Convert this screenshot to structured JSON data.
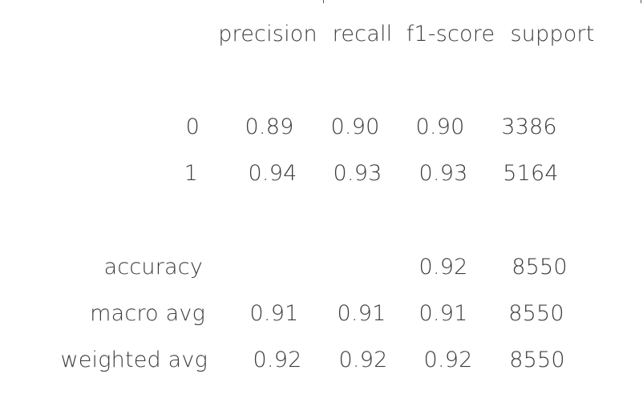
{
  "report": {
    "headers": [
      "precision",
      "recall",
      "f1-score",
      "support"
    ],
    "class_rows": [
      {
        "label": "0",
        "precision": "0.89",
        "recall": "0.90",
        "f1": "0.90",
        "support": "3386"
      },
      {
        "label": "1",
        "precision": "0.94",
        "recall": "0.93",
        "f1": "0.93",
        "support": "5164"
      }
    ],
    "accuracy": {
      "label": "accuracy",
      "f1": "0.92",
      "support": "8550"
    },
    "avg_rows": [
      {
        "label": "macro avg",
        "precision": "0.91",
        "recall": "0.91",
        "f1": "0.91",
        "support": "8550"
      },
      {
        "label": "weighted avg",
        "precision": "0.92",
        "recall": "0.92",
        "f1": "0.92",
        "support": "8550"
      }
    ]
  }
}
